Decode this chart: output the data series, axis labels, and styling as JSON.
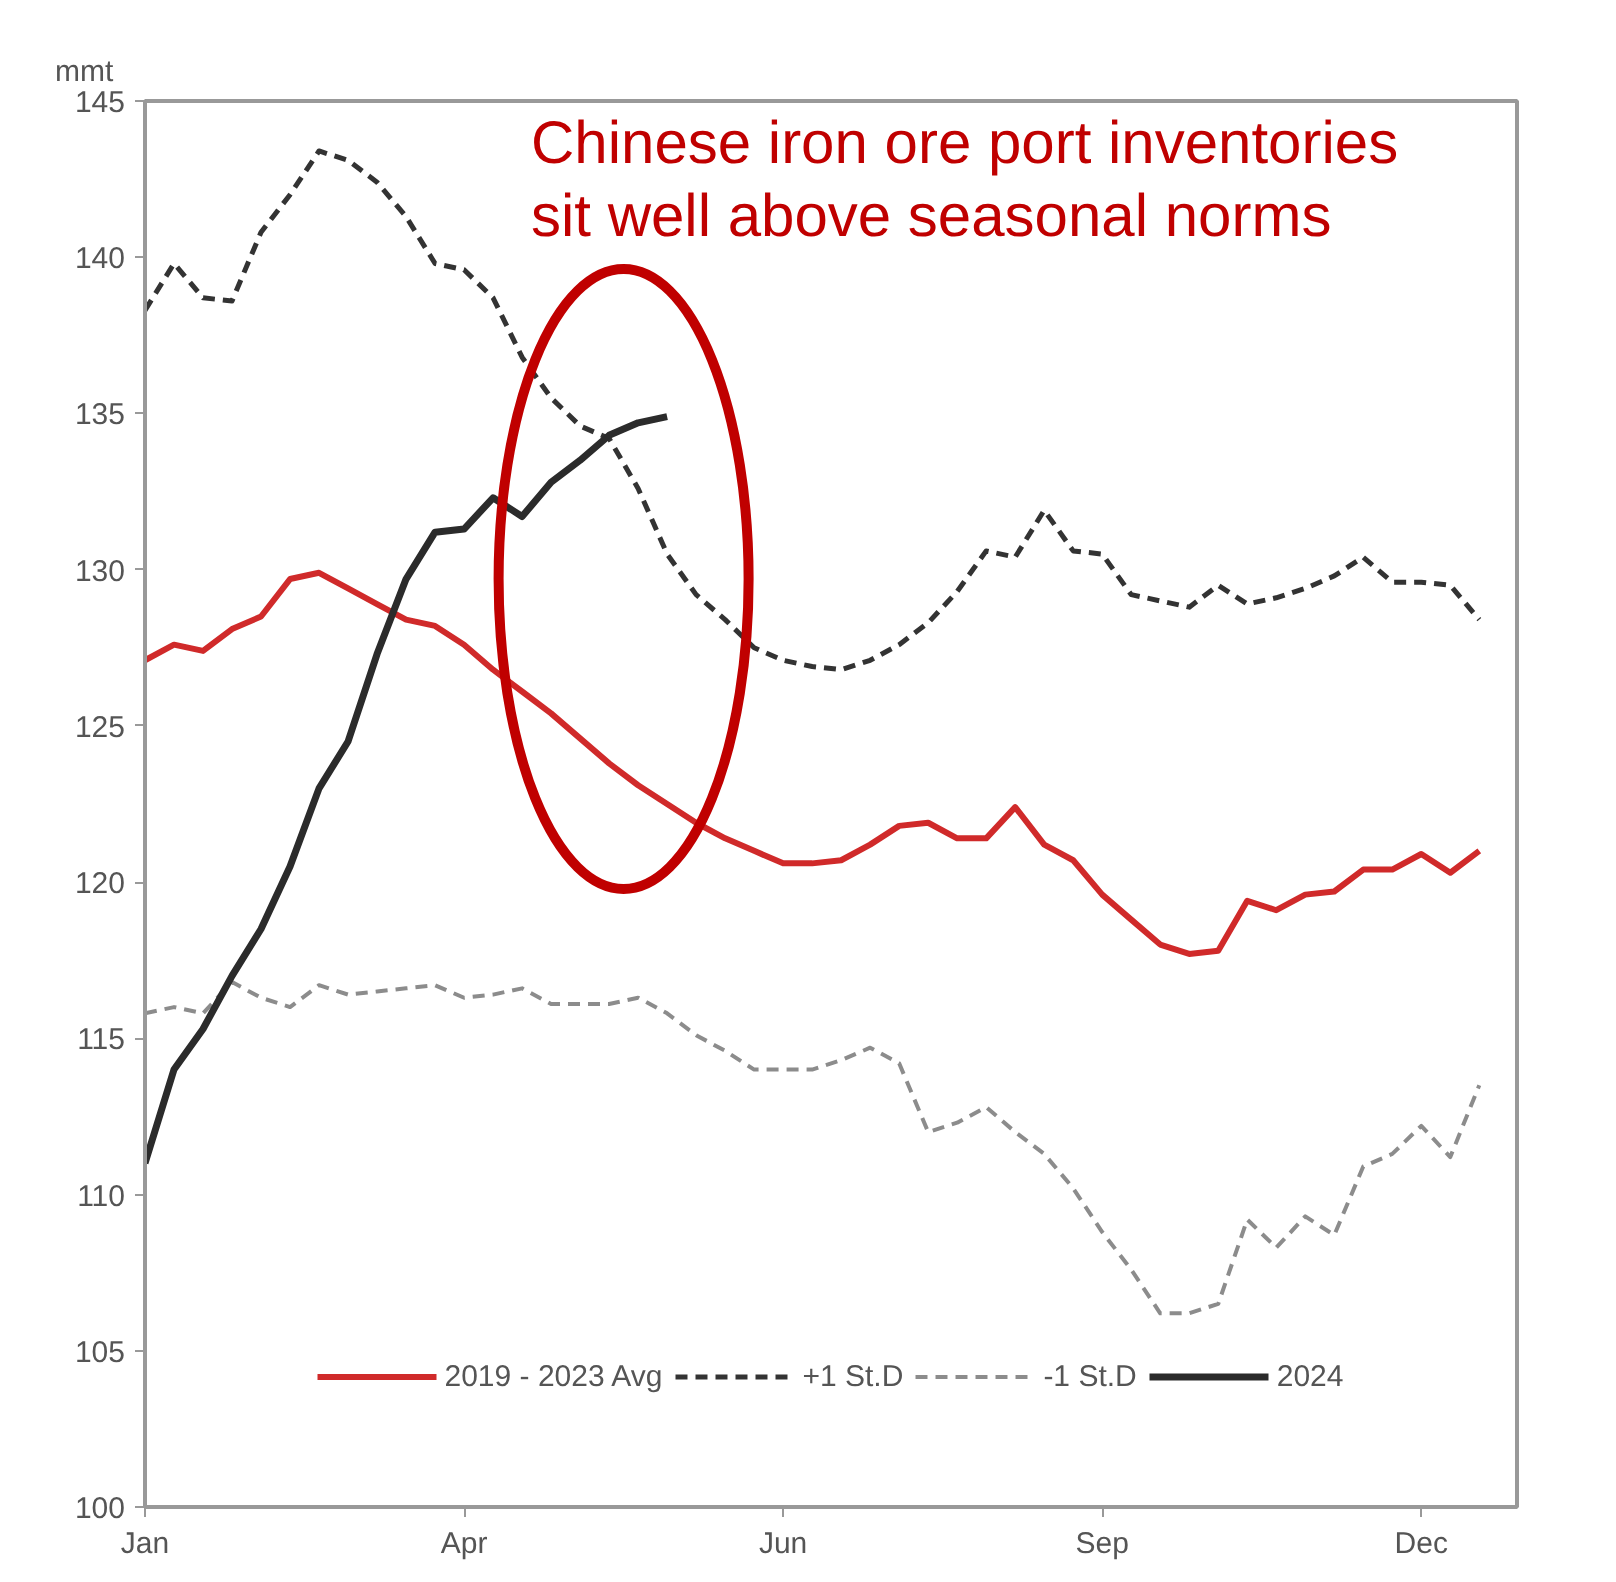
{
  "chart_data": {
    "type": "line",
    "ylabel": "mmt",
    "annotations": [
      "Chinese iron ore port inventories\nsit well above seasonal norms"
    ],
    "categories": [
      "Jan",
      null,
      null,
      null,
      null,
      null,
      null,
      null,
      null,
      null,
      null,
      "Apr",
      null,
      null,
      null,
      null,
      null,
      null,
      null,
      null,
      null,
      null,
      "Jun",
      null,
      null,
      null,
      null,
      null,
      null,
      null,
      null,
      null,
      null,
      "Sep",
      null,
      null,
      null,
      null,
      null,
      null,
      null,
      null,
      null,
      null,
      "Dec",
      null,
      null
    ],
    "ylim": [
      100,
      145
    ],
    "yticks": [
      100,
      105,
      110,
      115,
      120,
      125,
      130,
      135,
      140,
      145
    ],
    "legend": "bottom",
    "series": [
      {
        "name": "2019 - 2023 Avg",
        "color": "#d02a2a",
        "line_style": "solid",
        "values": [
          127.1,
          127.6,
          127.4,
          128.1,
          128.5,
          129.7,
          129.9,
          129.4,
          128.9,
          128.4,
          128.2,
          127.6,
          126.8,
          126.1,
          125.4,
          124.6,
          123.8,
          123.1,
          122.5,
          121.9,
          121.4,
          121.0,
          120.6,
          120.6,
          120.7,
          121.2,
          121.8,
          121.9,
          121.4,
          121.4,
          122.4,
          121.2,
          120.7,
          119.6,
          118.8,
          118.0,
          117.7,
          117.8,
          119.4,
          119.1,
          119.6,
          119.7,
          120.4,
          120.4,
          120.9,
          120.3,
          121.0
        ]
      },
      {
        "name": "+1 St.D",
        "color": "#333333",
        "line_style": "dashed",
        "values": [
          138.3,
          139.8,
          138.7,
          138.6,
          140.8,
          142.0,
          143.4,
          143.1,
          142.4,
          141.3,
          139.8,
          139.6,
          138.7,
          136.8,
          135.5,
          134.6,
          134.2,
          132.6,
          130.5,
          129.2,
          128.4,
          127.5,
          127.1,
          126.9,
          126.8,
          127.1,
          127.6,
          128.3,
          129.3,
          130.6,
          130.4,
          131.9,
          130.6,
          130.5,
          129.2,
          129.0,
          128.8,
          129.5,
          128.9,
          129.1,
          129.4,
          129.8,
          130.4,
          129.6,
          129.6,
          129.5,
          128.4
        ]
      },
      {
        "name": "-1 St.D",
        "color": "#8c8c8c",
        "line_style": "dashed",
        "values": [
          115.8,
          116.0,
          115.8,
          116.8,
          116.3,
          116.0,
          116.7,
          116.4,
          116.5,
          116.6,
          116.7,
          116.3,
          116.4,
          116.6,
          116.1,
          116.1,
          116.1,
          116.3,
          115.8,
          115.1,
          114.6,
          114.0,
          114.0,
          114.0,
          114.3,
          114.7,
          114.2,
          112.0,
          112.3,
          112.8,
          112.0,
          111.3,
          110.2,
          108.8,
          107.6,
          106.2,
          106.2,
          106.5,
          109.2,
          108.3,
          109.3,
          108.7,
          110.9,
          111.3,
          112.2,
          111.2,
          113.5
        ]
      },
      {
        "name": "2024",
        "color": "#2b2b2b",
        "line_style": "solid",
        "values": [
          111.0,
          114.0,
          115.3,
          117.0,
          118.5,
          120.5,
          123.0,
          124.5,
          127.3,
          129.7,
          131.2,
          131.3,
          132.3,
          131.7,
          132.8,
          133.5,
          134.3,
          134.7,
          134.9,
          null,
          null,
          null,
          null,
          null,
          null,
          null,
          null,
          null,
          null,
          null,
          null,
          null,
          null,
          null,
          null,
          null,
          null,
          null,
          null,
          null,
          null,
          null,
          null,
          null,
          null,
          null,
          null
        ]
      }
    ]
  }
}
